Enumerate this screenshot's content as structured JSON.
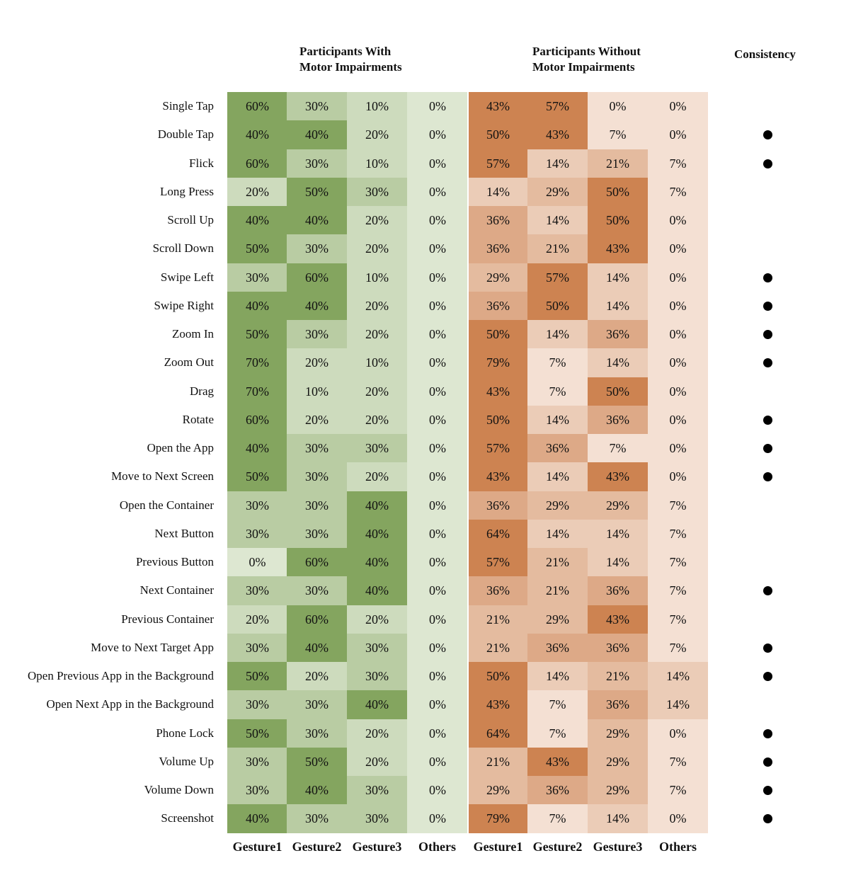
{
  "chart_data": {
    "type": "heatmap",
    "group_headers": [
      {
        "lines": [
          "Participants With",
          "Motor Impairments"
        ]
      },
      {
        "lines": [
          "Participants Without",
          "Motor Impairments"
        ]
      },
      {
        "lines": [
          "Consistency"
        ]
      }
    ],
    "columns": [
      "Gesture1",
      "Gesture2",
      "Gesture3",
      "Others",
      "Gesture1",
      "Gesture2",
      "Gesture3",
      "Others"
    ],
    "groups": [
      "With Motor Impairments",
      "Without Motor Impairments"
    ],
    "group_colors": {
      "with": {
        "light": "#e9f0e1",
        "dark": "#84a55f"
      },
      "without": {
        "light": "#f7e8de",
        "dark": "#cd8351"
      }
    },
    "rows": [
      {
        "label": "Single Tap",
        "values": [
          60,
          30,
          10,
          0,
          43,
          57,
          0,
          0
        ],
        "consistent": false
      },
      {
        "label": "Double Tap",
        "values": [
          40,
          40,
          20,
          0,
          50,
          43,
          7,
          0
        ],
        "consistent": true
      },
      {
        "label": "Flick",
        "values": [
          60,
          30,
          10,
          0,
          57,
          14,
          21,
          7
        ],
        "consistent": true
      },
      {
        "label": "Long Press",
        "values": [
          20,
          50,
          30,
          0,
          14,
          29,
          50,
          7
        ],
        "consistent": false
      },
      {
        "label": "Scroll Up",
        "values": [
          40,
          40,
          20,
          0,
          36,
          14,
          50,
          0
        ],
        "consistent": false
      },
      {
        "label": "Scroll Down",
        "values": [
          50,
          30,
          20,
          0,
          36,
          21,
          43,
          0
        ],
        "consistent": false
      },
      {
        "label": "Swipe Left",
        "values": [
          30,
          60,
          10,
          0,
          29,
          57,
          14,
          0
        ],
        "consistent": true
      },
      {
        "label": "Swipe Right",
        "values": [
          40,
          40,
          20,
          0,
          36,
          50,
          14,
          0
        ],
        "consistent": true
      },
      {
        "label": "Zoom In",
        "values": [
          50,
          30,
          20,
          0,
          50,
          14,
          36,
          0
        ],
        "consistent": true
      },
      {
        "label": "Zoom Out",
        "values": [
          70,
          20,
          10,
          0,
          79,
          7,
          14,
          0
        ],
        "consistent": true
      },
      {
        "label": "Drag",
        "values": [
          70,
          10,
          20,
          0,
          43,
          7,
          50,
          0
        ],
        "consistent": false
      },
      {
        "label": "Rotate",
        "values": [
          60,
          20,
          20,
          0,
          50,
          14,
          36,
          0
        ],
        "consistent": true
      },
      {
        "label": "Open the App",
        "values": [
          40,
          30,
          30,
          0,
          57,
          36,
          7,
          0
        ],
        "consistent": true
      },
      {
        "label": "Move to Next Screen",
        "values": [
          50,
          30,
          20,
          0,
          43,
          14,
          43,
          0
        ],
        "consistent": true
      },
      {
        "label": "Open the Container",
        "values": [
          30,
          30,
          40,
          0,
          36,
          29,
          29,
          7
        ],
        "consistent": false
      },
      {
        "label": "Next Button",
        "values": [
          30,
          30,
          40,
          0,
          64,
          14,
          14,
          7
        ],
        "consistent": false
      },
      {
        "label": "Previous Button",
        "values": [
          0,
          60,
          40,
          0,
          57,
          21,
          14,
          7
        ],
        "consistent": false
      },
      {
        "label": "Next Container",
        "values": [
          30,
          30,
          40,
          0,
          36,
          21,
          36,
          7
        ],
        "consistent": true
      },
      {
        "label": "Previous Container",
        "values": [
          20,
          60,
          20,
          0,
          21,
          29,
          43,
          7
        ],
        "consistent": false
      },
      {
        "label": "Move to Next Target App",
        "values": [
          30,
          40,
          30,
          0,
          21,
          36,
          36,
          7
        ],
        "consistent": true
      },
      {
        "label": "Open Previous App in the Background",
        "values": [
          50,
          20,
          30,
          0,
          50,
          14,
          21,
          14
        ],
        "consistent": true
      },
      {
        "label": "Open Next App in the Background",
        "values": [
          30,
          30,
          40,
          0,
          43,
          7,
          36,
          14
        ],
        "consistent": false
      },
      {
        "label": "Phone Lock",
        "values": [
          50,
          30,
          20,
          0,
          64,
          7,
          29,
          0
        ],
        "consistent": true
      },
      {
        "label": "Volume Up",
        "values": [
          30,
          50,
          20,
          0,
          21,
          43,
          29,
          7
        ],
        "consistent": true
      },
      {
        "label": "Volume Down",
        "values": [
          30,
          40,
          30,
          0,
          29,
          36,
          29,
          7
        ],
        "consistent": true
      },
      {
        "label": "Screenshot",
        "values": [
          40,
          30,
          30,
          0,
          79,
          7,
          14,
          0
        ],
        "consistent": true
      }
    ],
    "value_suffix": "%"
  }
}
